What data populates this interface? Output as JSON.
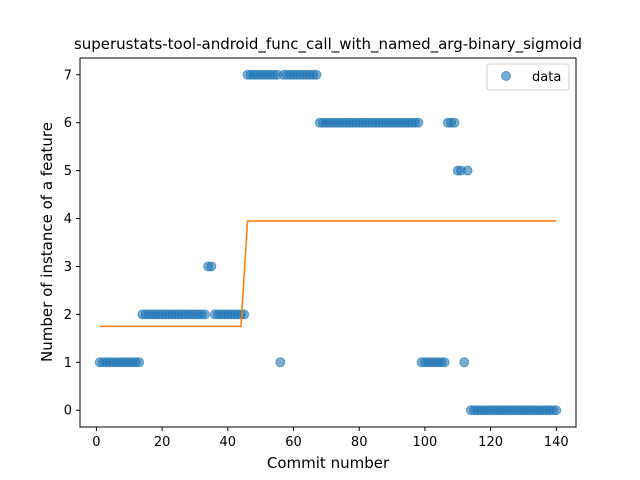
{
  "chart_data": {
    "type": "scatter",
    "title": "superustats-tool-android_func_call_with_named_arg-binary_sigmoid",
    "xlabel": "Commit number",
    "ylabel": "Number of instance of a feature",
    "xlim": [
      -5,
      146
    ],
    "ylim": [
      -0.35,
      7.35
    ],
    "xticks": [
      0,
      20,
      40,
      60,
      80,
      100,
      120,
      140
    ],
    "yticks": [
      0,
      1,
      2,
      3,
      4,
      5,
      6,
      7
    ],
    "grid": false,
    "legend": {
      "position": "top-right",
      "entries": [
        "data"
      ]
    },
    "colors": {
      "data": "#1f77b4",
      "fit": "#ff7f0e"
    },
    "series": [
      {
        "name": "data",
        "kind": "scatter",
        "x": [
          1,
          2,
          3,
          4,
          5,
          6,
          7,
          8,
          9,
          10,
          11,
          12,
          13,
          14,
          15,
          16,
          17,
          18,
          19,
          20,
          21,
          22,
          23,
          24,
          25,
          26,
          27,
          28,
          29,
          30,
          31,
          32,
          33,
          34,
          35,
          36,
          37,
          38,
          39,
          40,
          41,
          42,
          43,
          44,
          45,
          46,
          47,
          48,
          49,
          50,
          51,
          52,
          53,
          54,
          55,
          56,
          57,
          58,
          59,
          60,
          61,
          62,
          63,
          64,
          65,
          66,
          67,
          68,
          69,
          70,
          71,
          72,
          73,
          74,
          75,
          76,
          77,
          78,
          79,
          80,
          81,
          82,
          83,
          84,
          85,
          86,
          87,
          88,
          89,
          90,
          91,
          92,
          93,
          94,
          95,
          96,
          97,
          98,
          99,
          100,
          101,
          102,
          103,
          104,
          105,
          106,
          107,
          108,
          109,
          110,
          111,
          112,
          113,
          114,
          115,
          116,
          117,
          118,
          119,
          120,
          121,
          122,
          123,
          124,
          125,
          126,
          127,
          128,
          129,
          130,
          131,
          132,
          133,
          134,
          135,
          136,
          137,
          138,
          139,
          140
        ],
        "y": [
          1,
          1,
          1,
          1,
          1,
          1,
          1,
          1,
          1,
          1,
          1,
          1,
          1,
          2,
          2,
          2,
          2,
          2,
          2,
          2,
          2,
          2,
          2,
          2,
          2,
          2,
          2,
          2,
          2,
          2,
          2,
          2,
          2,
          3,
          3,
          2,
          2,
          2,
          2,
          2,
          2,
          2,
          2,
          2,
          2,
          7,
          7,
          7,
          7,
          7,
          7,
          7,
          7,
          7,
          7,
          1,
          7,
          7,
          7,
          7,
          7,
          7,
          7,
          7,
          7,
          7,
          7,
          6,
          6,
          6,
          6,
          6,
          6,
          6,
          6,
          6,
          6,
          6,
          6,
          6,
          6,
          6,
          6,
          6,
          6,
          6,
          6,
          6,
          6,
          6,
          6,
          6,
          6,
          6,
          6,
          6,
          6,
          6,
          1,
          1,
          1,
          1,
          1,
          1,
          1,
          1,
          6,
          6,
          6,
          5,
          5,
          1,
          5,
          0,
          0,
          0,
          0,
          0,
          0,
          0,
          0,
          0,
          0,
          0,
          0,
          0,
          0,
          0,
          0,
          0,
          0,
          0,
          0,
          0,
          0,
          0,
          0,
          0,
          0,
          0
        ]
      },
      {
        "name": "",
        "kind": "line",
        "x": [
          1,
          44,
          46,
          140
        ],
        "y": [
          1.75,
          1.75,
          3.95,
          3.95
        ]
      }
    ]
  }
}
